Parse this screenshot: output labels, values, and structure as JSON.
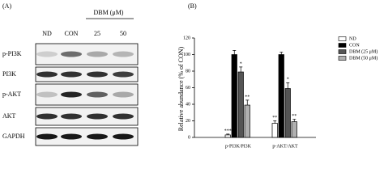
{
  "blot": {
    "label": "(A)",
    "group_label": "DBM (μM)",
    "lanes": [
      "ND",
      "CON",
      "25",
      "50"
    ],
    "rows": [
      "p-PI3K",
      "PI3K",
      "p-AKT",
      "AKT",
      "GAPDH"
    ]
  },
  "chart_data": {
    "type": "bar",
    "panel_label": "(B)",
    "y_label": "Relative abundance (% of CON)",
    "categories": [
      "p-PI3K/PI3K",
      "p-AKT/AKT"
    ],
    "ylim": [
      0,
      120
    ],
    "yticks": [
      0,
      20,
      40,
      60,
      80,
      100,
      120
    ],
    "legend": "right",
    "series": [
      {
        "name": "ND",
        "color": "#ffffff",
        "values": [
          3,
          17
        ],
        "errors": [
          1,
          3
        ],
        "annotations": [
          "***",
          "**"
        ]
      },
      {
        "name": "CON",
        "color": "#000000",
        "values": [
          100,
          100
        ],
        "errors": [
          5,
          3
        ],
        "annotations": [
          null,
          null
        ]
      },
      {
        "name": "DBM (25 μM)",
        "color": "#555555",
        "values": [
          79,
          59
        ],
        "errors": [
          6,
          7
        ],
        "annotations": [
          "*",
          "*"
        ]
      },
      {
        "name": "DBM (50 μM)",
        "color": "#b0b0b0",
        "values": [
          39,
          19
        ],
        "errors": [
          6,
          3
        ],
        "annotations": [
          "**",
          "**"
        ]
      }
    ]
  }
}
